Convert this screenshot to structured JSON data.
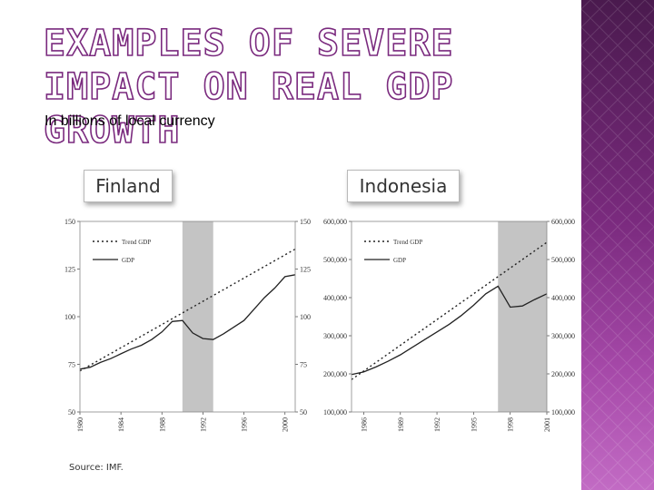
{
  "title": "EXAMPLES OF SEVERE IMPACT ON REAL GDP GROWTH",
  "subtitle": "In billions of local currency",
  "source": "Source: IMF.",
  "colors": {
    "band": "#7a2a7e",
    "shade": "#c4c4c4",
    "line": "#222222"
  },
  "chart_data": [
    {
      "type": "line",
      "title": "Finland",
      "ylim": [
        50,
        150
      ],
      "yticks": [
        50,
        75,
        100,
        125,
        150
      ],
      "xlim": [
        1980,
        2001
      ],
      "xticks": [
        1980,
        1984,
        1988,
        1992,
        1996,
        2000
      ],
      "shaded_range": [
        1990,
        1993
      ],
      "series": [
        {
          "name": "Trend GDP",
          "style": "dotted",
          "x": [
            1980,
            2001
          ],
          "y": [
            71.5,
            135.5
          ]
        },
        {
          "name": "GDP",
          "style": "solid",
          "x": [
            1980,
            1981,
            1982,
            1983,
            1984,
            1985,
            1986,
            1987,
            1988,
            1989,
            1990,
            1991,
            1992,
            1993,
            1994,
            1995,
            1996,
            1997,
            1998,
            1999,
            2000,
            2001
          ],
          "y": [
            72.5,
            73.5,
            76,
            78,
            80.5,
            83,
            85,
            88,
            92,
            97.5,
            98,
            91.5,
            88.5,
            88,
            91,
            94.5,
            98,
            104,
            110,
            115,
            121,
            122
          ]
        }
      ]
    },
    {
      "type": "line",
      "title": "Indonesia",
      "ylim": [
        100000,
        600000
      ],
      "yticks_left": [
        "100,000",
        "200,000",
        "300,000",
        "400,000",
        "500,000",
        "600,000"
      ],
      "yticks_right": [
        "100,000",
        "200,000",
        "300,000",
        "400,000",
        "500,000",
        "600,000"
      ],
      "xlim": [
        1985,
        2001
      ],
      "xticks": [
        1986,
        1989,
        1992,
        1995,
        1998,
        2001
      ],
      "shaded_range": [
        1997,
        2001
      ],
      "series": [
        {
          "name": "Trend GDP",
          "style": "dotted",
          "x": [
            1985,
            2001
          ],
          "y": [
            185000,
            545000
          ]
        },
        {
          "name": "GDP",
          "style": "solid",
          "x": [
            1985,
            1986,
            1987,
            1988,
            1989,
            1990,
            1991,
            1992,
            1993,
            1994,
            1995,
            1996,
            1997,
            1998,
            1999,
            2000,
            2001
          ],
          "y": [
            198000,
            205000,
            218000,
            233000,
            250000,
            270000,
            290000,
            310000,
            330000,
            353000,
            380000,
            410000,
            430000,
            375000,
            378000,
            395000,
            410000
          ]
        }
      ]
    }
  ]
}
